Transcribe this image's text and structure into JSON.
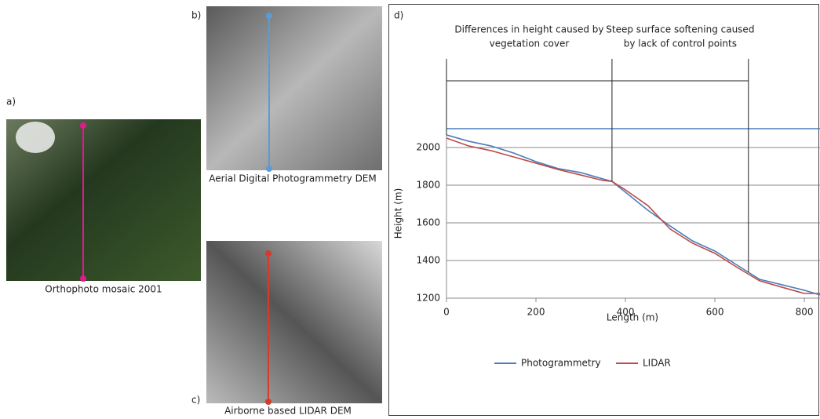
{
  "panels": [
    {
      "letter": "a)",
      "caption": "Orthophoto mosaic 2001"
    },
    {
      "letter": "b)",
      "caption": "Aerial Digital Photogrammetry DEM"
    },
    {
      "letter": "c)",
      "caption": "Airborne based LIDAR DEM"
    }
  ],
  "chart_data": {
    "type": "line",
    "letter": "d)",
    "x_label": "Length (m)",
    "y_label": "Height (m)",
    "x": [
      0,
      50,
      100,
      150,
      200,
      250,
      300,
      350,
      370,
      400,
      450,
      500,
      550,
      600,
      650,
      700,
      750,
      800,
      835
    ],
    "series": [
      {
        "name": "Photogrammetry",
        "color": "#4a7ebb",
        "values": [
          2067,
          2033,
          2008,
          1971,
          1925,
          1888,
          1867,
          1833,
          1820,
          1763,
          1667,
          1583,
          1504,
          1450,
          1375,
          1300,
          1271,
          1242,
          1217
        ]
      },
      {
        "name": "LIDAR",
        "color": "#be4b48",
        "values": [
          2050,
          2008,
          1983,
          1950,
          1917,
          1883,
          1854,
          1825,
          1820,
          1775,
          1692,
          1567,
          1492,
          1438,
          1363,
          1292,
          1258,
          1225,
          1225
        ]
      }
    ],
    "xlim": [
      0,
      835
    ],
    "ylim": [
      1200,
      2100
    ],
    "xticks": [
      0,
      200,
      400,
      600,
      800
    ],
    "yticks": [
      1200,
      1400,
      1600,
      1800,
      2000
    ],
    "grid": true,
    "annotations": [
      {
        "lines": [
          "Differences in height caused by",
          "vegetation cover"
        ],
        "x": [
          0,
          370
        ]
      },
      {
        "lines": [
          "Steep surface softening caused",
          "by lack of control points"
        ],
        "x": [
          370,
          675
        ]
      }
    ]
  }
}
